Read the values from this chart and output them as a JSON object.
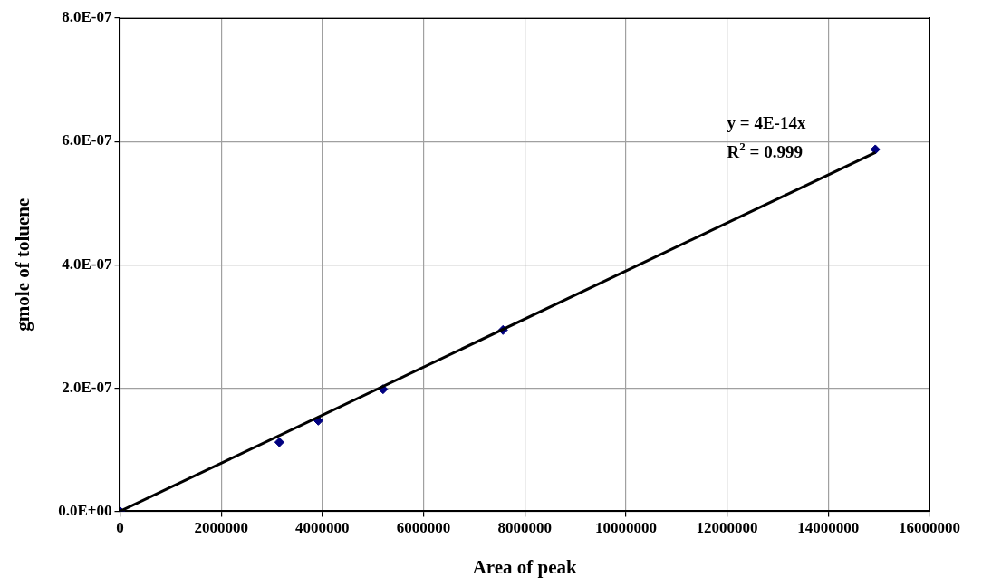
{
  "chart_data": {
    "type": "scatter",
    "xlabel": "Area of peak",
    "ylabel": "gmole of toluene",
    "xlim": [
      0,
      16000000
    ],
    "xticks": [
      0,
      2000000,
      4000000,
      6000000,
      8000000,
      10000000,
      12000000,
      14000000,
      16000000
    ],
    "ylim": [
      0,
      8e-07
    ],
    "yticks": [
      {
        "value": 0,
        "label": "0.0E+00"
      },
      {
        "value": 2e-07,
        "label": "2.0E-07"
      },
      {
        "value": 4e-07,
        "label": "4.0E-07"
      },
      {
        "value": 6e-07,
        "label": "6.0E-07"
      },
      {
        "value": 8e-07,
        "label": "8.0E-07"
      }
    ],
    "x": [
      0,
      3150000,
      3920000,
      5200000,
      7570000,
      14930000
    ],
    "series": [
      {
        "color": "#000080",
        "values": [
          0,
          1.12e-07,
          1.47e-07,
          1.98e-07,
          2.94e-07,
          5.87e-07
        ],
        "marker": "diamond"
      },
      {
        "type": "line",
        "color": "#000000",
        "x": [
          0,
          14930000
        ],
        "values": [
          0,
          5.82e-07
        ],
        "marker": "none",
        "line_style": "solid"
      }
    ],
    "annotations": [
      "y = 4E-14x",
      "R$^{2}$ = 0.999"
    ],
    "grid": true,
    "legend": false
  }
}
